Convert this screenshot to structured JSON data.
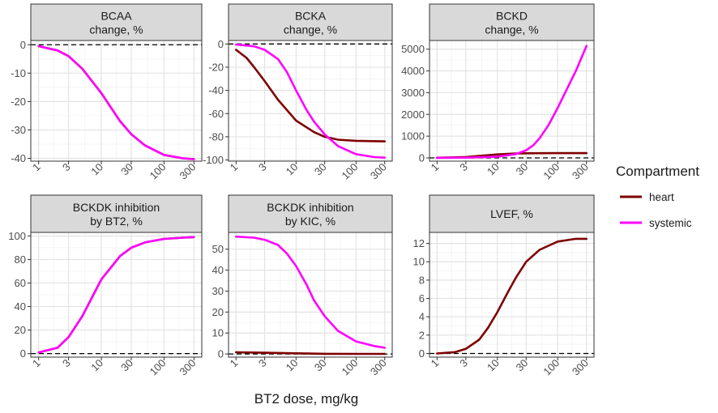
{
  "figure": {
    "xlabel": "BT2 dose, mg/kg",
    "legend": {
      "title": "Compartment",
      "position": "right",
      "items": [
        {
          "label": "heart",
          "color": "#7f0000"
        },
        {
          "label": "systemic",
          "color": "#ff00ff"
        }
      ]
    }
  },
  "chart_data": [
    {
      "type": "line",
      "title": [
        "BCAA",
        "change, %"
      ],
      "xscale": "log",
      "x_ticks": [
        1,
        3,
        10,
        30,
        100,
        300
      ],
      "ylim": [
        -41,
        1.5
      ],
      "y_ticks": [
        0,
        -10,
        -20,
        -30,
        -40
      ],
      "reference_line": 0,
      "series": [
        {
          "name": "heart",
          "x": [
            1,
            2,
            3,
            5,
            10,
            20,
            30,
            50,
            100,
            200,
            300
          ],
          "y": [
            -0.5,
            -2,
            -4,
            -8.5,
            -17,
            -27,
            -31.5,
            -35.5,
            -38.8,
            -40,
            -40.3
          ]
        },
        {
          "name": "systemic",
          "x": [
            1,
            2,
            3,
            5,
            10,
            20,
            30,
            50,
            100,
            200,
            300
          ],
          "y": [
            -0.5,
            -2,
            -4,
            -8.5,
            -17,
            -27,
            -31.5,
            -35.5,
            -38.8,
            -40,
            -40.3
          ]
        }
      ]
    },
    {
      "type": "line",
      "title": [
        "BCKA",
        "change, %"
      ],
      "xscale": "log",
      "x_ticks": [
        1,
        3,
        10,
        30,
        100,
        300
      ],
      "ylim": [
        -101,
        3
      ],
      "y_ticks": [
        0,
        -20,
        -40,
        -60,
        -80,
        -100
      ],
      "reference_line": 0,
      "series": [
        {
          "name": "heart",
          "x": [
            1,
            1.5,
            2,
            3,
            5,
            10,
            20,
            30,
            50,
            100,
            300
          ],
          "y": [
            -5,
            -12,
            -20,
            -32,
            -48,
            -66,
            -76,
            -80,
            -82.5,
            -83.5,
            -84
          ]
        },
        {
          "name": "systemic",
          "x": [
            1,
            2,
            3,
            5,
            7,
            10,
            15,
            20,
            30,
            50,
            100,
            200,
            300
          ],
          "y": [
            -0.5,
            -2,
            -5,
            -13,
            -24,
            -40,
            -57,
            -67,
            -78,
            -88,
            -95,
            -97.5,
            -98
          ]
        }
      ]
    },
    {
      "type": "line",
      "title": [
        "BCKD",
        "change, %"
      ],
      "xscale": "log",
      "x_ticks": [
        1,
        3,
        10,
        30,
        100,
        300
      ],
      "ylim": [
        -150,
        5400
      ],
      "y_ticks": [
        0,
        1000,
        2000,
        3000,
        4000,
        5000
      ],
      "reference_line": 0,
      "series": [
        {
          "name": "heart",
          "x": [
            1,
            3,
            5,
            10,
            20,
            30,
            50,
            100,
            300
          ],
          "y": [
            5,
            40,
            90,
            160,
            200,
            210,
            215,
            220,
            220
          ]
        },
        {
          "name": "systemic",
          "x": [
            1,
            3,
            10,
            20,
            30,
            40,
            50,
            70,
            100,
            150,
            200,
            300
          ],
          "y": [
            2,
            10,
            60,
            170,
            350,
            600,
            900,
            1500,
            2300,
            3300,
            4000,
            5150
          ]
        }
      ]
    },
    {
      "type": "line",
      "title": [
        "BCKDK inhibition",
        "by BT2, %"
      ],
      "xscale": "log",
      "x_ticks": [
        1,
        3,
        10,
        30,
        100,
        300
      ],
      "ylim": [
        -3,
        103
      ],
      "y_ticks": [
        0,
        20,
        40,
        60,
        80,
        100
      ],
      "reference_line": 0,
      "series": [
        {
          "name": "heart",
          "x": [
            1,
            2,
            3,
            5,
            10,
            20,
            30,
            50,
            100,
            200,
            300
          ],
          "y": [
            1,
            5,
            14,
            32,
            63,
            83,
            90,
            94.5,
            97.5,
            98.5,
            99
          ]
        },
        {
          "name": "systemic",
          "x": [
            1,
            2,
            3,
            5,
            10,
            20,
            30,
            50,
            100,
            200,
            300
          ],
          "y": [
            1,
            5,
            14,
            32,
            63,
            83,
            90,
            94.5,
            97.5,
            98.5,
            99
          ]
        }
      ]
    },
    {
      "type": "line",
      "title": [
        "BCKDK inhibition",
        "by KIC, %"
      ],
      "xscale": "log",
      "x_ticks": [
        1,
        3,
        10,
        30,
        100,
        300
      ],
      "ylim": [
        -1.5,
        58
      ],
      "y_ticks": [
        0,
        10,
        20,
        30,
        40,
        50
      ],
      "reference_line": 0,
      "series": [
        {
          "name": "heart",
          "x": [
            1,
            3,
            10,
            30,
            100,
            300
          ],
          "y": [
            0.8,
            0.6,
            0.3,
            0.1,
            0.05,
            0.05
          ]
        },
        {
          "name": "systemic",
          "x": [
            1,
            2,
            3,
            5,
            7,
            10,
            15,
            20,
            30,
            50,
            100,
            200,
            300
          ],
          "y": [
            56,
            55.5,
            54.5,
            52,
            48,
            42,
            33,
            25.5,
            18,
            11,
            6,
            3.8,
            3
          ]
        }
      ]
    },
    {
      "type": "line",
      "title": [
        "LVEF, %"
      ],
      "xscale": "log",
      "x_ticks": [
        1,
        3,
        10,
        30,
        100,
        300
      ],
      "ylim": [
        -0.4,
        13.2
      ],
      "y_ticks": [
        0,
        2,
        4,
        6,
        8,
        10,
        12
      ],
      "reference_line": 0,
      "series": [
        {
          "name": "heart",
          "x": [
            1,
            2,
            3,
            5,
            7,
            10,
            15,
            20,
            30,
            50,
            100,
            200,
            300
          ],
          "y": [
            0,
            0.15,
            0.5,
            1.5,
            2.8,
            4.5,
            6.7,
            8.2,
            10,
            11.3,
            12.2,
            12.5,
            12.5
          ]
        }
      ]
    }
  ]
}
